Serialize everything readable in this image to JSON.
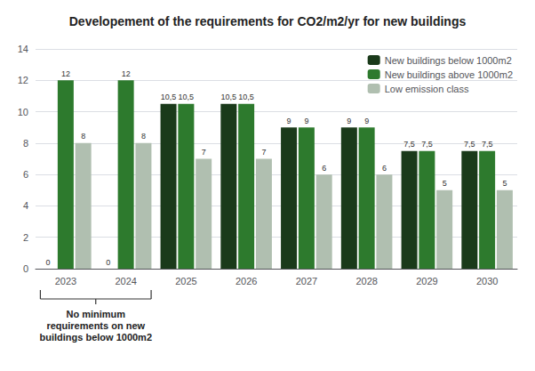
{
  "chart_data": {
    "type": "bar",
    "title": "Developement of the requirements for CO2/m2/yr for new buildings",
    "categories": [
      "2023",
      "2024",
      "2025",
      "2026",
      "2027",
      "2028",
      "2029",
      "2030"
    ],
    "series": [
      {
        "name": "New buildings below 1000m2",
        "color": "#1a3a1a",
        "values": [
          0,
          0,
          10.5,
          10.5,
          9,
          9,
          7.5,
          7.5
        ],
        "value_labels": [
          "0",
          "0",
          "10,5",
          "10,5",
          "9",
          "9",
          "7,5",
          "7,5"
        ]
      },
      {
        "name": "New buildings above 1000m2",
        "color": "#2d7a2d",
        "values": [
          12,
          12,
          10.5,
          10.5,
          9,
          9,
          7.5,
          7.5
        ],
        "value_labels": [
          "12",
          "12",
          "10,5",
          "10,5",
          "9",
          "9",
          "7,5",
          "7,5"
        ]
      },
      {
        "name": "Low emission class",
        "color": "#b0bfb0",
        "values": [
          8,
          8,
          7,
          7,
          6,
          6,
          5,
          5
        ]
      }
    ],
    "ylim": [
      0,
      14
    ],
    "yticks": [
      0,
      2,
      4,
      6,
      8,
      10,
      12,
      14
    ],
    "grid": true,
    "legend": "upper right",
    "data_labels": true,
    "annotation": "No minimum\nrequirements on new\nbuildings below 1000m2"
  }
}
